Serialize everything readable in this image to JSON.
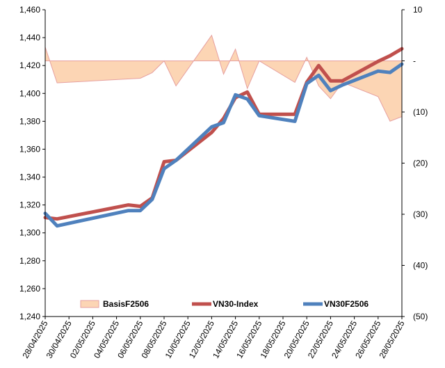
{
  "chart_data": {
    "type": "line",
    "title": "",
    "xlabel": "",
    "ylabel": "",
    "x_ticks": [
      "28/04/2025",
      "30/04/2025",
      "02/05/2025",
      "04/05/2025",
      "06/05/2025",
      "08/05/2025",
      "10/05/2025",
      "12/05/2025",
      "14/05/2025",
      "16/05/2025",
      "18/05/2025",
      "20/05/2025",
      "22/05/2025",
      "24/05/2025",
      "26/05/2025",
      "28/05/2025"
    ],
    "x_range": [
      "2025-04-28",
      "2025-05-28"
    ],
    "y_left": {
      "range": [
        1240,
        1460
      ],
      "step": 20,
      "tick_labels": [
        "1,240",
        "1,260",
        "1,280",
        "1,300",
        "1,320",
        "1,340",
        "1,360",
        "1,380",
        "1,400",
        "1,420",
        "1,440",
        "1,460"
      ]
    },
    "y_right": {
      "range": [
        -50,
        10
      ],
      "step": 10,
      "tick_labels": [
        "(50)",
        "(40)",
        "(30)",
        "(20)",
        "(10)",
        "-",
        "10"
      ]
    },
    "grid": false,
    "legend_position": "bottom",
    "series": [
      {
        "name": "BasisF2506",
        "type": "area",
        "axis": "right",
        "color": "#fcd5b4",
        "edge_color": "#e6a0a0",
        "x": [
          "2025-04-28",
          "2025-04-29",
          "2025-05-06",
          "2025-05-07",
          "2025-05-08",
          "2025-05-09",
          "2025-05-12",
          "2025-05-13",
          "2025-05-14",
          "2025-05-15",
          "2025-05-16",
          "2025-05-19",
          "2025-05-20",
          "2025-05-21",
          "2025-05-22",
          "2025-05-23",
          "2025-05-26",
          "2025-05-27",
          "2025-05-28"
        ],
        "values": [
          2.7,
          -4.3,
          -3.4,
          -2.3,
          0.0,
          -4.9,
          5.0,
          -2.6,
          2.3,
          -5.4,
          0.0,
          -4.2,
          0.7,
          -4.9,
          -7.4,
          -4.2,
          -7.0,
          -11.8,
          -10.9
        ]
      },
      {
        "name": "VN30-Index",
        "type": "line",
        "axis": "left",
        "color": "#c0504d",
        "x": [
          "2025-04-28",
          "2025-04-29",
          "2025-05-05",
          "2025-05-06",
          "2025-05-07",
          "2025-05-08",
          "2025-05-09",
          "2025-05-12",
          "2025-05-13",
          "2025-05-14",
          "2025-05-15",
          "2025-05-16",
          "2025-05-19",
          "2025-05-20",
          "2025-05-21",
          "2025-05-22",
          "2025-05-23",
          "2025-05-26",
          "2025-05-27",
          "2025-05-28"
        ],
        "values": [
          1311,
          1310,
          1320,
          1319,
          1325,
          1351,
          1352,
          1372,
          1382,
          1397,
          1401,
          1385,
          1385,
          1408,
          1420,
          1409,
          1409,
          1423,
          1427,
          1432
        ]
      },
      {
        "name": "VN30F2506",
        "type": "line",
        "axis": "left",
        "color": "#4f81bd",
        "x": [
          "2025-04-28",
          "2025-04-29",
          "2025-05-05",
          "2025-05-06",
          "2025-05-07",
          "2025-05-08",
          "2025-05-09",
          "2025-05-12",
          "2025-05-13",
          "2025-05-14",
          "2025-05-15",
          "2025-05-16",
          "2025-05-19",
          "2025-05-20",
          "2025-05-21",
          "2025-05-22",
          "2025-05-23",
          "2025-05-26",
          "2025-05-27",
          "2025-05-28"
        ],
        "values": [
          1314,
          1305,
          1316,
          1316,
          1324,
          1346,
          1352,
          1376,
          1379,
          1399,
          1396,
          1384,
          1380,
          1407,
          1413,
          1402,
          1406,
          1416,
          1415,
          1421
        ]
      }
    ]
  }
}
